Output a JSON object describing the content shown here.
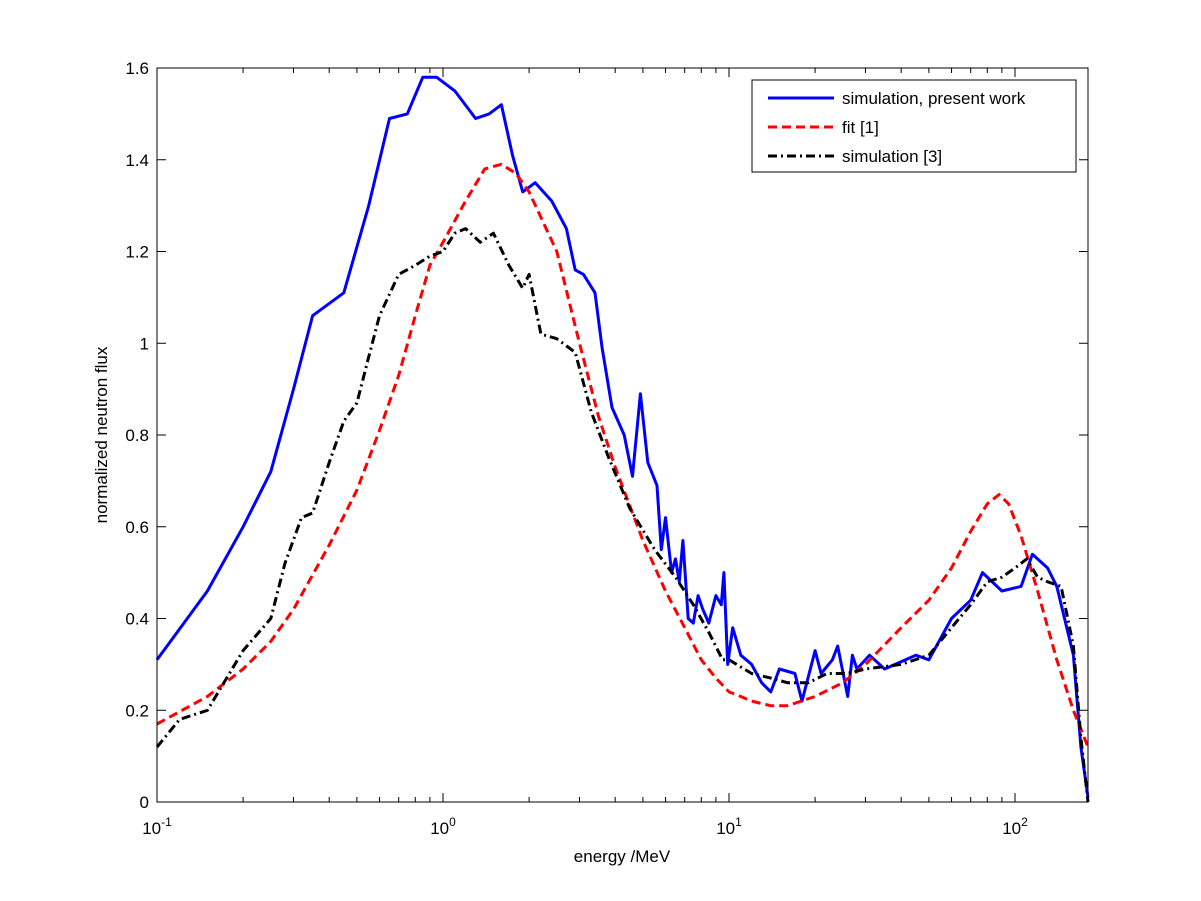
{
  "chart_data": {
    "type": "line",
    "title": "",
    "xlabel": "energy /MeV",
    "ylabel": "normalized neutron flux",
    "xscale": "log",
    "xlim": [
      0.1,
      180
    ],
    "ylim": [
      0,
      1.6
    ],
    "grid": false,
    "legend_position": "top-right",
    "x_ticks": [
      {
        "value": 0.1,
        "base": "10",
        "exp": "-1"
      },
      {
        "value": 1,
        "base": "10",
        "exp": "0"
      },
      {
        "value": 10,
        "base": "10",
        "exp": "1"
      },
      {
        "value": 100,
        "base": "10",
        "exp": "2"
      }
    ],
    "y_ticks": [
      {
        "value": 0,
        "label": "0"
      },
      {
        "value": 0.2,
        "label": "0.2"
      },
      {
        "value": 0.4,
        "label": "0.4"
      },
      {
        "value": 0.6,
        "label": "0.6"
      },
      {
        "value": 0.8,
        "label": "0.8"
      },
      {
        "value": 1.0,
        "label": "1"
      },
      {
        "value": 1.2,
        "label": "1.2"
      },
      {
        "value": 1.4,
        "label": "1.4"
      },
      {
        "value": 1.6,
        "label": "1.6"
      }
    ],
    "series": [
      {
        "name": "simulation, present work",
        "color": "#0000ff",
        "style": "solid",
        "points": [
          [
            0.1,
            0.31
          ],
          [
            0.15,
            0.46
          ],
          [
            0.2,
            0.6
          ],
          [
            0.25,
            0.72
          ],
          [
            0.3,
            0.9
          ],
          [
            0.35,
            1.06
          ],
          [
            0.45,
            1.11
          ],
          [
            0.55,
            1.3
          ],
          [
            0.65,
            1.49
          ],
          [
            0.75,
            1.5
          ],
          [
            0.85,
            1.58
          ],
          [
            0.95,
            1.58
          ],
          [
            1.1,
            1.55
          ],
          [
            1.3,
            1.49
          ],
          [
            1.45,
            1.5
          ],
          [
            1.6,
            1.52
          ],
          [
            1.75,
            1.41
          ],
          [
            1.9,
            1.33
          ],
          [
            2.1,
            1.35
          ],
          [
            2.4,
            1.31
          ],
          [
            2.7,
            1.25
          ],
          [
            2.9,
            1.16
          ],
          [
            3.1,
            1.15
          ],
          [
            3.4,
            1.11
          ],
          [
            3.6,
            0.99
          ],
          [
            3.9,
            0.86
          ],
          [
            4.3,
            0.8
          ],
          [
            4.6,
            0.71
          ],
          [
            4.9,
            0.89
          ],
          [
            5.2,
            0.74
          ],
          [
            5.6,
            0.69
          ],
          [
            5.8,
            0.55
          ],
          [
            6.0,
            0.62
          ],
          [
            6.3,
            0.5
          ],
          [
            6.5,
            0.53
          ],
          [
            6.7,
            0.48
          ],
          [
            6.9,
            0.57
          ],
          [
            7.2,
            0.4
          ],
          [
            7.5,
            0.39
          ],
          [
            7.8,
            0.45
          ],
          [
            8.1,
            0.42
          ],
          [
            8.5,
            0.39
          ],
          [
            9.0,
            0.45
          ],
          [
            9.4,
            0.43
          ],
          [
            9.6,
            0.5
          ],
          [
            9.9,
            0.3
          ],
          [
            10.3,
            0.38
          ],
          [
            11,
            0.32
          ],
          [
            12,
            0.3
          ],
          [
            13,
            0.26
          ],
          [
            14,
            0.24
          ],
          [
            15,
            0.29
          ],
          [
            17,
            0.28
          ],
          [
            18,
            0.22
          ],
          [
            20,
            0.33
          ],
          [
            21,
            0.28
          ],
          [
            23,
            0.31
          ],
          [
            24,
            0.34
          ],
          [
            26,
            0.23
          ],
          [
            27,
            0.32
          ],
          [
            28,
            0.29
          ],
          [
            31,
            0.32
          ],
          [
            35,
            0.29
          ],
          [
            45,
            0.32
          ],
          [
            50,
            0.31
          ],
          [
            60,
            0.4
          ],
          [
            70,
            0.44
          ],
          [
            77,
            0.5
          ],
          [
            90,
            0.46
          ],
          [
            105,
            0.47
          ],
          [
            115,
            0.54
          ],
          [
            130,
            0.51
          ],
          [
            140,
            0.47
          ],
          [
            160,
            0.32
          ],
          [
            170,
            0.12
          ],
          [
            180,
            0.01
          ]
        ]
      },
      {
        "name": "fit [1]",
        "color": "#ff0000",
        "style": "dashed",
        "points": [
          [
            0.1,
            0.17
          ],
          [
            0.15,
            0.23
          ],
          [
            0.2,
            0.29
          ],
          [
            0.25,
            0.35
          ],
          [
            0.3,
            0.42
          ],
          [
            0.4,
            0.56
          ],
          [
            0.5,
            0.68
          ],
          [
            0.6,
            0.81
          ],
          [
            0.7,
            0.93
          ],
          [
            0.8,
            1.06
          ],
          [
            0.9,
            1.17
          ],
          [
            1.0,
            1.22
          ],
          [
            1.2,
            1.31
          ],
          [
            1.4,
            1.38
          ],
          [
            1.6,
            1.39
          ],
          [
            1.8,
            1.37
          ],
          [
            2.0,
            1.33
          ],
          [
            2.5,
            1.2
          ],
          [
            3.0,
            1.0
          ],
          [
            3.5,
            0.84
          ],
          [
            4.0,
            0.73
          ],
          [
            5.0,
            0.57
          ],
          [
            6.0,
            0.46
          ],
          [
            7.0,
            0.38
          ],
          [
            8.0,
            0.31
          ],
          [
            9.0,
            0.27
          ],
          [
            10,
            0.24
          ],
          [
            11,
            0.23
          ],
          [
            12,
            0.22
          ],
          [
            14,
            0.21
          ],
          [
            16,
            0.21
          ],
          [
            20,
            0.23
          ],
          [
            25,
            0.26
          ],
          [
            30,
            0.3
          ],
          [
            40,
            0.38
          ],
          [
            50,
            0.44
          ],
          [
            60,
            0.51
          ],
          [
            70,
            0.59
          ],
          [
            80,
            0.65
          ],
          [
            88,
            0.67
          ],
          [
            95,
            0.65
          ],
          [
            105,
            0.58
          ],
          [
            120,
            0.46
          ],
          [
            140,
            0.31
          ],
          [
            160,
            0.2
          ],
          [
            180,
            0.12
          ]
        ]
      },
      {
        "name": "simulation [3]",
        "color": "#000000",
        "style": "dashdot",
        "points": [
          [
            0.1,
            0.12
          ],
          [
            0.12,
            0.18
          ],
          [
            0.15,
            0.2
          ],
          [
            0.2,
            0.33
          ],
          [
            0.25,
            0.4
          ],
          [
            0.28,
            0.52
          ],
          [
            0.32,
            0.62
          ],
          [
            0.35,
            0.63
          ],
          [
            0.4,
            0.74
          ],
          [
            0.45,
            0.83
          ],
          [
            0.5,
            0.87
          ],
          [
            0.55,
            0.97
          ],
          [
            0.6,
            1.06
          ],
          [
            0.7,
            1.15
          ],
          [
            0.8,
            1.17
          ],
          [
            0.9,
            1.19
          ],
          [
            1.0,
            1.2
          ],
          [
            1.1,
            1.24
          ],
          [
            1.2,
            1.25
          ],
          [
            1.35,
            1.22
          ],
          [
            1.5,
            1.24
          ],
          [
            1.7,
            1.17
          ],
          [
            1.9,
            1.12
          ],
          [
            2.0,
            1.15
          ],
          [
            2.2,
            1.02
          ],
          [
            2.5,
            1.01
          ],
          [
            2.9,
            0.98
          ],
          [
            3.3,
            0.85
          ],
          [
            3.8,
            0.75
          ],
          [
            4.5,
            0.64
          ],
          [
            5.5,
            0.55
          ],
          [
            6.5,
            0.49
          ],
          [
            7.5,
            0.43
          ],
          [
            8.5,
            0.37
          ],
          [
            9.5,
            0.31
          ],
          [
            10,
            0.31
          ],
          [
            12,
            0.28
          ],
          [
            14,
            0.27
          ],
          [
            16,
            0.26
          ],
          [
            19,
            0.26
          ],
          [
            22,
            0.28
          ],
          [
            26,
            0.28
          ],
          [
            30,
            0.29
          ],
          [
            40,
            0.3
          ],
          [
            50,
            0.32
          ],
          [
            60,
            0.38
          ],
          [
            70,
            0.43
          ],
          [
            80,
            0.48
          ],
          [
            90,
            0.49
          ],
          [
            100,
            0.51
          ],
          [
            110,
            0.53
          ],
          [
            120,
            0.49
          ],
          [
            130,
            0.48
          ],
          [
            145,
            0.47
          ],
          [
            160,
            0.34
          ],
          [
            170,
            0.14
          ],
          [
            180,
            0.0
          ]
        ]
      }
    ]
  }
}
